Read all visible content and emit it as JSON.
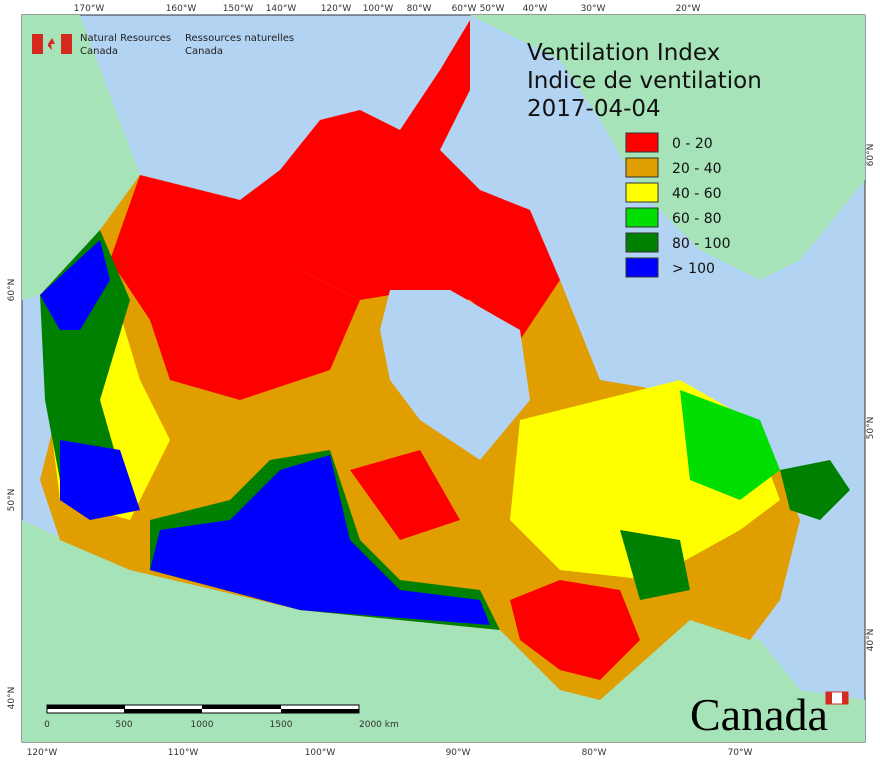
{
  "header": {
    "agency_en": "Natural Resources",
    "country_en": "Canada",
    "agency_fr": "Ressources naturelles",
    "country_fr": "Canada"
  },
  "title": {
    "line1": "Ventilation Index",
    "line2": "Indice de ventilation",
    "date": "2017-04-04"
  },
  "legend": [
    {
      "label": "0 - 20",
      "color": "#ff0000"
    },
    {
      "label": "20 - 40",
      "color": "#e09e00"
    },
    {
      "label": "40 - 60",
      "color": "#ffff00"
    },
    {
      "label": "60 - 80",
      "color": "#00dd00"
    },
    {
      "label": "80 - 100",
      "color": "#008000"
    },
    {
      "label": "> 100",
      "color": "#0000ff"
    }
  ],
  "top_lon_labels": [
    "170°W",
    "160°W",
    "150°W",
    "140°W",
    "120°W",
    "100°W",
    "80°W",
    "60°W",
    "50°W",
    "40°W",
    "30°W",
    "20°W"
  ],
  "bottom_lon_labels": [
    "120°W",
    "110°W",
    "100°W",
    "90°W",
    "80°W",
    "70°W"
  ],
  "left_lat_labels": [
    "60°N",
    "50°N",
    "40°N"
  ],
  "right_lat_labels": [
    "60°N",
    "50°N",
    "40°N"
  ],
  "scale_bar": {
    "labels": [
      "0",
      "500",
      "1000",
      "1500",
      "2000  km"
    ]
  },
  "wordmark": "Canada"
}
